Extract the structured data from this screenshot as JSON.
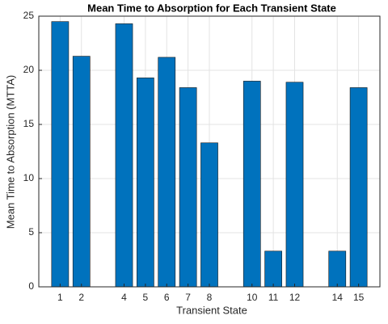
{
  "chart_data": {
    "type": "bar",
    "title": "Mean Time to Absorption for Each Transient State",
    "xlabel": "Transient State",
    "ylabel": "Mean Time to Absorption (MTTA)",
    "x": [
      1,
      2,
      4,
      5,
      6,
      7,
      8,
      10,
      11,
      12,
      14,
      15
    ],
    "values": [
      24.5,
      21.3,
      24.3,
      19.3,
      21.2,
      18.4,
      13.3,
      19.0,
      3.3,
      18.9,
      3.3,
      18.4
    ],
    "color": "#0072bd",
    "xlim": [
      0,
      16
    ],
    "xticks": [
      1,
      2,
      4,
      5,
      6,
      7,
      8,
      10,
      11,
      12,
      14,
      15
    ],
    "ylim": [
      0,
      25
    ],
    "yticks": [
      0,
      5,
      10,
      15,
      20,
      25
    ],
    "grid": true
  }
}
